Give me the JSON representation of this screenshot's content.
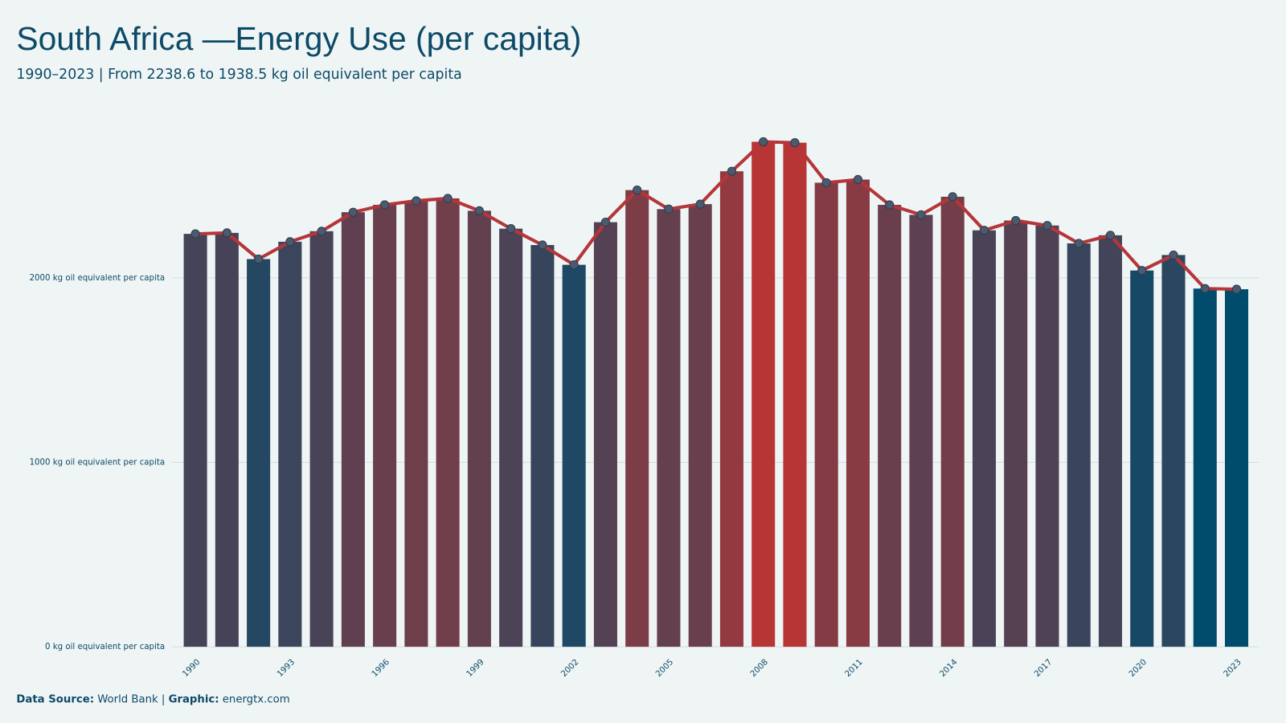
{
  "chart_data": {
    "type": "bar-line",
    "title": "South Africa —Energy Use (per capita)",
    "subtitle": "1990–2023 | From 2238.6 to 1938.5 kg oil equivalent per capita",
    "source_label": "Data Source:",
    "source": "World Bank",
    "graphic_label": "Graphic:",
    "graphic": "energtx.com",
    "x": [
      1990,
      1991,
      1992,
      1993,
      1994,
      1995,
      1996,
      1997,
      1998,
      1999,
      2000,
      2001,
      2002,
      2003,
      2004,
      2005,
      2006,
      2007,
      2008,
      2009,
      2010,
      2011,
      2012,
      2013,
      2014,
      2015,
      2016,
      2017,
      2018,
      2019,
      2020,
      2021,
      2022,
      2023
    ],
    "values": [
      2238.6,
      2244,
      2102,
      2196,
      2253,
      2356,
      2396,
      2418,
      2431,
      2364,
      2267,
      2178,
      2071,
      2302,
      2476,
      2373,
      2400,
      2578,
      2738,
      2733,
      2516,
      2533,
      2396,
      2342,
      2440,
      2258,
      2311,
      2284,
      2187,
      2231,
      2040,
      2124,
      1942,
      1938.5
    ],
    "xlim": [
      1989.5,
      2023.5
    ],
    "xticks": [
      1990,
      1993,
      1996,
      1999,
      2002,
      2005,
      2008,
      2011,
      2014,
      2017,
      2020,
      2023
    ],
    "ylim": [
      0,
      2900
    ],
    "yticks": [
      {
        "value": 0,
        "label": "0 kg oil equivalent per capita"
      },
      {
        "value": 1000,
        "label": "1000 kg oil equivalent per capita"
      },
      {
        "value": 2000,
        "label": "2000 kg oil equivalent per capita"
      }
    ],
    "grid": true,
    "color_scale": [
      "#004c6d",
      "#b83535"
    ],
    "line_color": "#b5363a",
    "point_color": "#4a5a70"
  }
}
